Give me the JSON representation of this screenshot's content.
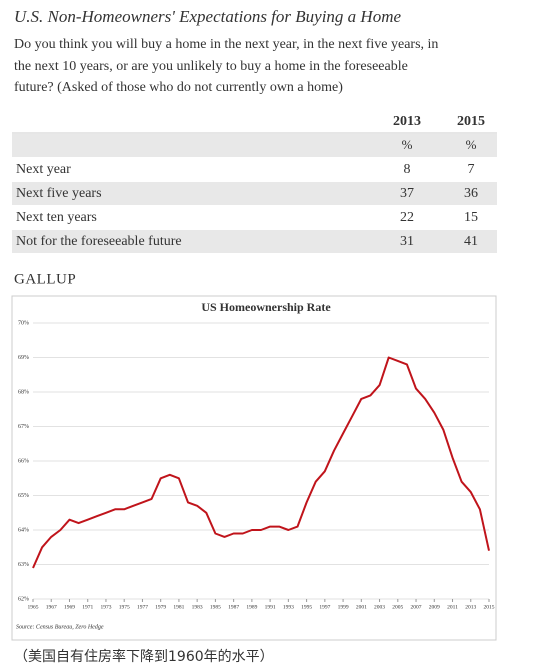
{
  "header": {
    "title": "U.S. Non-Homeowners' Expectations for Buying a Home",
    "subtitle": [
      "Do you think you will buy a home in the next year, in the next five years, in",
      "the next 10 years, or are you unlikely to buy a home in the foreseeable",
      "future? (Asked of those who do not currently own a home)"
    ]
  },
  "table": {
    "columns": [
      "2013",
      "2015"
    ],
    "units": [
      "%",
      "%"
    ],
    "rows": [
      [
        "Next year",
        8,
        7
      ],
      [
        "Next five years",
        37,
        36
      ],
      [
        "Next ten years",
        22,
        15
      ],
      [
        "Not for the foreseeable future",
        31,
        41
      ]
    ]
  },
  "brand": "GALLUP",
  "chart_data": {
    "type": "line",
    "title": "US Homeownership Rate",
    "color": "#c0141b",
    "grid": true,
    "x": [
      1965,
      1966,
      1967,
      1968,
      1969,
      1970,
      1971,
      1972,
      1973,
      1974,
      1975,
      1976,
      1977,
      1978,
      1979,
      1980,
      1981,
      1982,
      1983,
      1984,
      1985,
      1986,
      1987,
      1988,
      1989,
      1990,
      1991,
      1992,
      1993,
      1994,
      1995,
      1996,
      1997,
      1998,
      1999,
      2000,
      2001,
      2002,
      2003,
      2004,
      2005,
      2006,
      2007,
      2008,
      2009,
      2010,
      2011,
      2012,
      2013,
      2014,
      2015
    ],
    "values": [
      62.9,
      63.5,
      63.8,
      64.0,
      64.3,
      64.2,
      64.3,
      64.4,
      64.5,
      64.6,
      64.6,
      64.7,
      64.8,
      64.9,
      65.5,
      65.6,
      65.5,
      64.8,
      64.7,
      64.5,
      63.9,
      63.8,
      63.9,
      63.9,
      64.0,
      64.0,
      64.1,
      64.1,
      64.0,
      64.1,
      64.8,
      65.4,
      65.7,
      66.3,
      66.8,
      67.3,
      67.8,
      67.9,
      68.2,
      69.0,
      68.9,
      68.8,
      68.1,
      67.8,
      67.4,
      66.9,
      66.1,
      65.4,
      65.1,
      64.6,
      63.4
    ],
    "xlim": [
      1965,
      2015
    ],
    "xticks": [
      1965,
      1967,
      1969,
      1971,
      1973,
      1975,
      1977,
      1979,
      1981,
      1983,
      1985,
      1987,
      1989,
      1991,
      1993,
      1995,
      1997,
      1999,
      2001,
      2003,
      2005,
      2007,
      2009,
      2011,
      2013,
      2015
    ],
    "ylim": [
      62,
      70
    ],
    "yticks": [
      {
        "value": 62,
        "label": "62%"
      },
      {
        "value": 63,
        "label": "63%"
      },
      {
        "value": 64,
        "label": "64%"
      },
      {
        "value": 65,
        "label": "65%"
      },
      {
        "value": 66,
        "label": "66%"
      },
      {
        "value": 67,
        "label": "67%"
      },
      {
        "value": 68,
        "label": "68%"
      },
      {
        "value": 69,
        "label": "69%"
      },
      {
        "value": 70,
        "label": "70%"
      }
    ],
    "source": "Source: Census Bureau, Zero Hedge"
  },
  "caption": "（美国自有住房率下降到1960年的水平）"
}
